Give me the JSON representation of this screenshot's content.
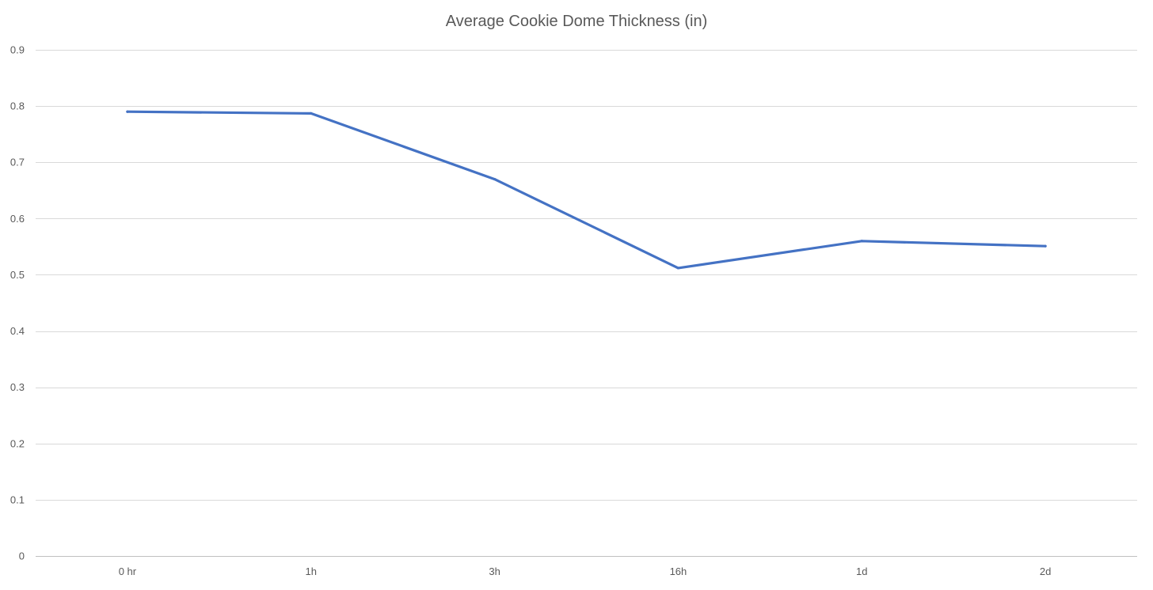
{
  "chart_data": {
    "type": "line",
    "title": "Average Cookie Dome Thickness (in)",
    "xlabel": "",
    "ylabel": "",
    "categories": [
      "0 hr",
      "1h",
      "3h",
      "16h",
      "1d",
      "2d"
    ],
    "series": [
      {
        "values": [
          0.79,
          0.787,
          0.67,
          0.512,
          0.56,
          0.551
        ],
        "color": "#4472C4"
      }
    ],
    "ylim": [
      0,
      0.9
    ],
    "yticks": [
      "0",
      "0.1",
      "0.2",
      "0.3",
      "0.4",
      "0.5",
      "0.6",
      "0.7",
      "0.8",
      "0.9"
    ],
    "grid": true,
    "legend": "none",
    "colors": {
      "grid": "#d9d9d9",
      "text": "#595959",
      "axis": "#bfbfbf"
    }
  }
}
